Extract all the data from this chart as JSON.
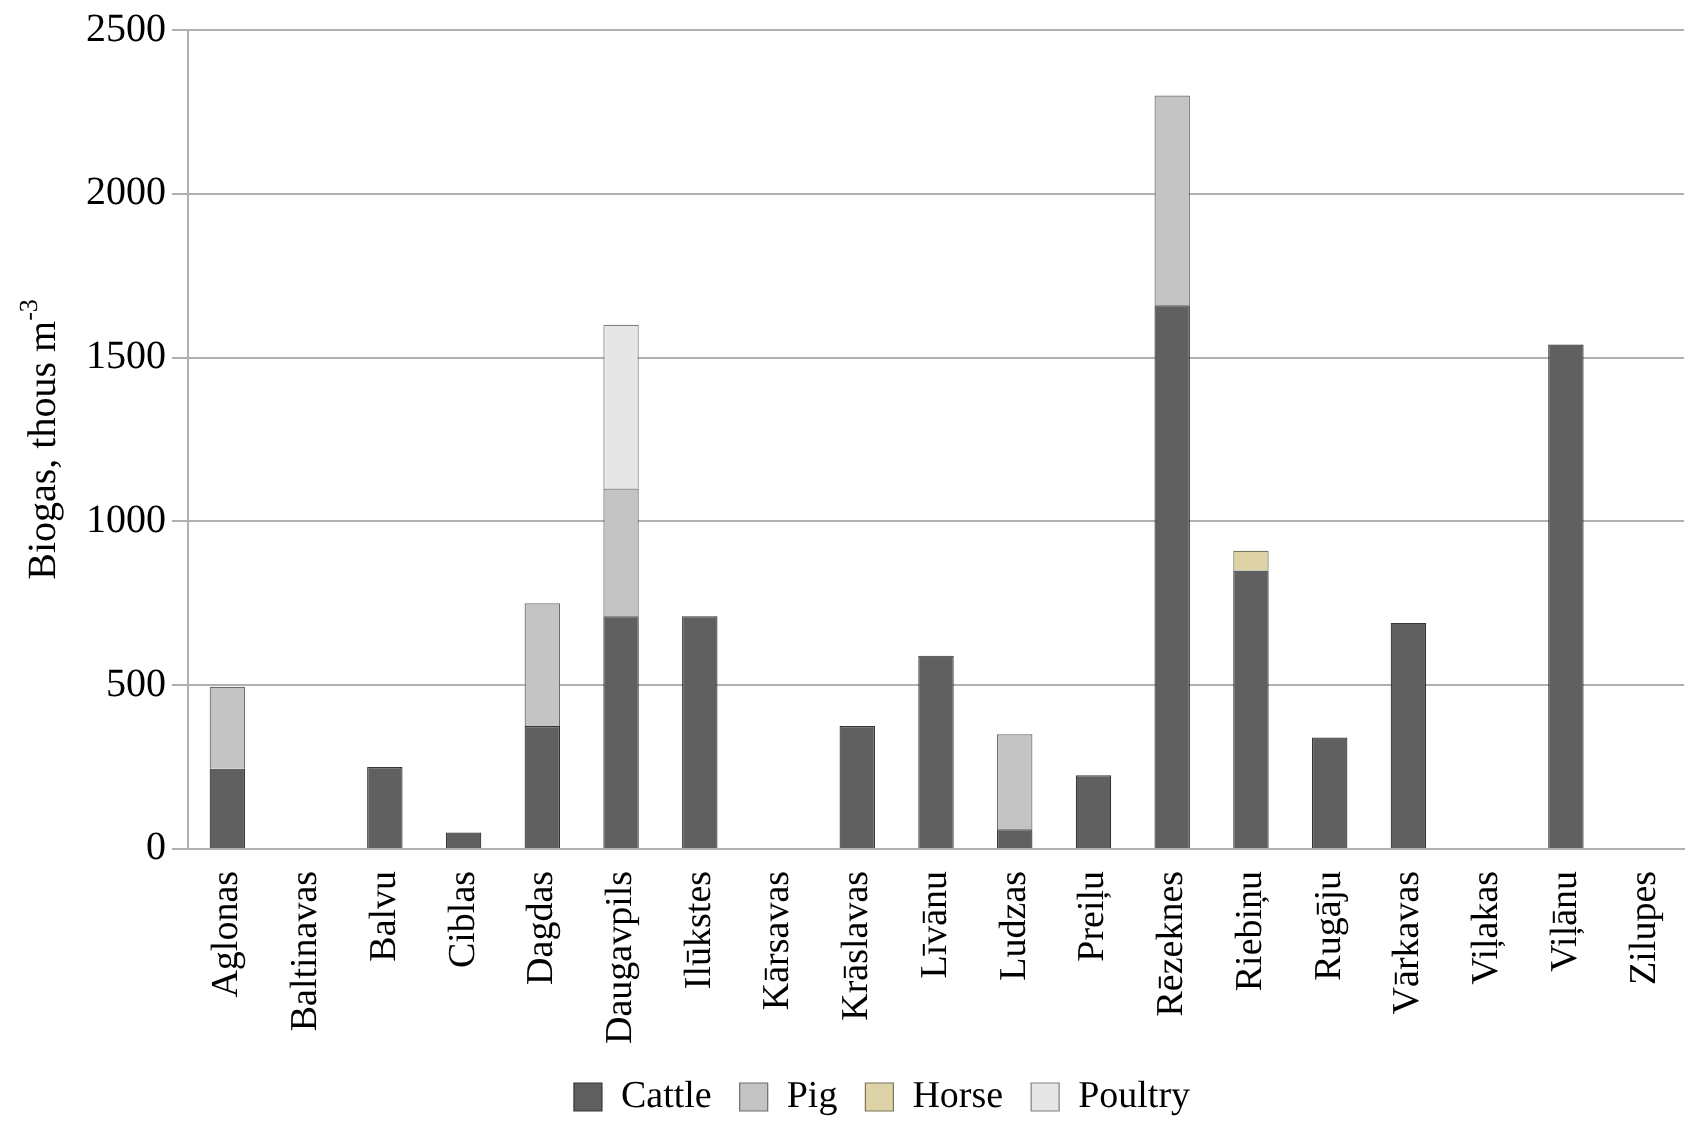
{
  "chart_data": {
    "type": "bar",
    "stacked": true,
    "ylabel": "Biogas, thous m$^{-3}$",
    "categories": [
      "Aglonas",
      "Baltinavas",
      "Balvu",
      "Ciblas",
      "Dagdas",
      "Daugavpils",
      "Ilūkstes",
      "Kārsavas",
      "Krāslavas",
      "Līvānu",
      "Ludzas",
      "Preiļu",
      "Rēzeknes",
      "Riebiņu",
      "Rugāju",
      "Vārkavas",
      "Viļakas",
      "Viļānu",
      "Zilupes"
    ],
    "series": [
      {
        "name": "Cattle",
        "color": "#606060",
        "values": [
          245,
          0,
          250,
          50,
          375,
          710,
          710,
          0,
          375,
          590,
          60,
          225,
          1660,
          850,
          340,
          690,
          0,
          1540,
          0
        ]
      },
      {
        "name": "Pig",
        "color": "#c4c4c4",
        "values": [
          250,
          null,
          null,
          null,
          375,
          390,
          null,
          null,
          null,
          null,
          290,
          null,
          640,
          null,
          null,
          null,
          null,
          null,
          null
        ]
      },
      {
        "name": "Horse",
        "color": "#ddd3a6",
        "values": [
          null,
          null,
          null,
          null,
          null,
          null,
          null,
          null,
          null,
          null,
          null,
          null,
          null,
          60,
          null,
          null,
          null,
          null,
          null
        ]
      },
      {
        "name": "Poultry",
        "color": "#e6e6e6",
        "values": [
          null,
          null,
          null,
          null,
          null,
          500,
          null,
          null,
          null,
          null,
          null,
          null,
          null,
          null,
          null,
          null,
          null,
          null,
          null
        ]
      }
    ],
    "ylim": [
      0,
      2500
    ],
    "yticks": [
      0,
      500,
      1000,
      1500,
      2000,
      2500
    ],
    "grid": "y",
    "legend": "bottom"
  }
}
